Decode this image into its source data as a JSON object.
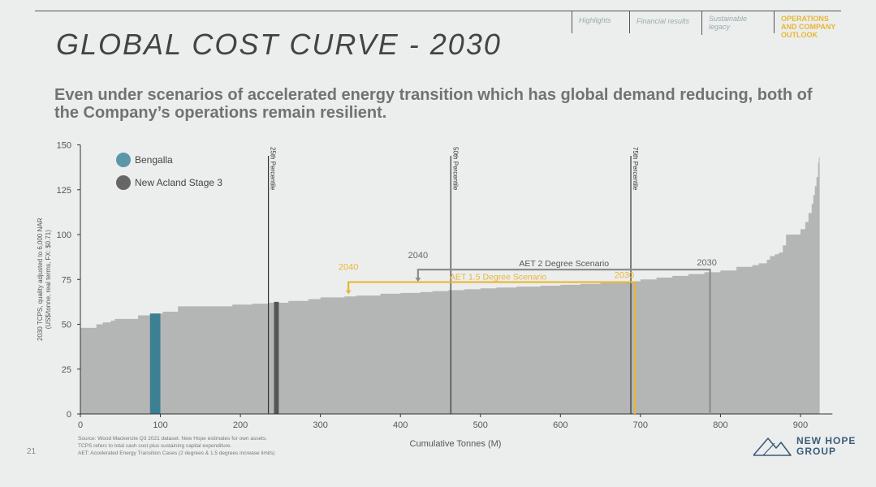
{
  "nav": {
    "items": [
      {
        "label": "Highlights"
      },
      {
        "label": "Financial results"
      },
      {
        "label": "Sustainable legacy"
      },
      {
        "label": "OPERATIONS AND COMPANY OUTLOOK"
      }
    ],
    "active_color": "#e8b634"
  },
  "header": {
    "title": "GLOBAL COST CURVE - 2030",
    "subtitle": "Even under scenarios of accelerated energy transition which has global demand reducing, both of the Company’s operations remain resilient."
  },
  "chart_data": {
    "type": "area",
    "xlabel": "Cumulative Tonnes (M)",
    "ylabel": "2030 TCPS, quality adjusted to 6,000 NAR (US$/tonne, real terms, FX: $0.71)",
    "xlim": [
      0,
      940
    ],
    "ylim": [
      0,
      150
    ],
    "x_ticks": [
      0,
      100,
      200,
      300,
      400,
      500,
      600,
      700,
      800,
      900
    ],
    "y_ticks": [
      0,
      25,
      50,
      75,
      100,
      125,
      150
    ],
    "legend": [
      {
        "name": "Bengalla",
        "color": "#5b97a8"
      },
      {
        "name": "New Acland Stage 3",
        "color": "#666666"
      }
    ],
    "curve": {
      "color": "#b4b6b6",
      "x": [
        0,
        12,
        20,
        28,
        38,
        43,
        72,
        98,
        103,
        112,
        122,
        160,
        190,
        215,
        235,
        260,
        285,
        300,
        330,
        345,
        375,
        400,
        425,
        440,
        460,
        480,
        500,
        520,
        545,
        575,
        600,
        625,
        650,
        680,
        700,
        720,
        740,
        760,
        780,
        800,
        820,
        840,
        848,
        858,
        862,
        868,
        873,
        878,
        882,
        896,
        900,
        906,
        910,
        914,
        916,
        918,
        920,
        922,
        923,
        924
      ],
      "y": [
        48,
        48,
        50,
        51,
        52,
        53,
        55,
        56,
        57,
        57,
        60,
        60,
        61,
        61.5,
        62,
        63,
        64,
        65,
        65.5,
        66,
        67,
        67.5,
        68,
        68.5,
        69,
        69.5,
        70,
        70.5,
        71,
        71.5,
        72,
        72.5,
        73,
        74,
        75,
        76,
        77,
        78,
        79,
        80,
        82,
        83,
        84,
        86,
        88,
        89,
        90,
        94,
        100,
        100,
        103,
        107,
        112,
        117,
        122,
        127,
        132,
        140,
        143,
        0
      ]
    },
    "highlights": [
      {
        "name": "Bengalla",
        "x_start": 87,
        "x_end": 100,
        "value": 56,
        "color": "#3d7f93"
      },
      {
        "name": "New Acland Stage 3",
        "x_start": 242,
        "x_end": 248,
        "value": 62.5,
        "color": "#555555"
      }
    ],
    "percentiles": [
      {
        "label": "25th Percentile",
        "x": 235
      },
      {
        "label": "50th Percentile",
        "x": 463
      },
      {
        "label": "75th Percentile",
        "x": 688
      }
    ],
    "scenarios": [
      {
        "name": "AET 2 Degree Scenario",
        "value": 80.5,
        "x_start": 422,
        "x_end": 787,
        "left_label": "2040",
        "right_label": "2030",
        "color": "#8c8c8c"
      },
      {
        "name": "AET 1.5 Degree Scenario",
        "value": 73.5,
        "x_start": 335,
        "x_end": 693,
        "left_label": "2040",
        "right_label": "2030",
        "color": "#e8b634"
      }
    ]
  },
  "source": {
    "lines": [
      "Source: Wood Mackenzie Q3 2021 dataset. New Hope estimates for own assets.",
      "TCPS refers to total cash cost plus sustaining capital expenditure.",
      "AET: Accelerated Energy Transition Cases (2 degrees & 1.5 degrees increase limits)"
    ]
  },
  "footer": {
    "page_number": "21",
    "logo_line1": "NEW HOPE",
    "logo_line2": "GROUP",
    "logo_color": "#3b5b78"
  }
}
